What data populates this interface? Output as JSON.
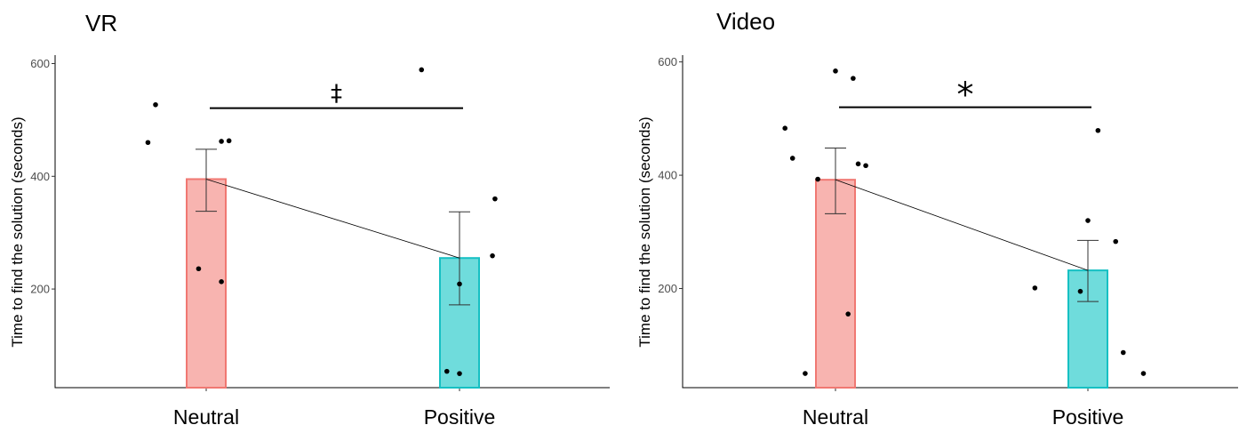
{
  "chart_data": [
    {
      "type": "bar",
      "title": "VR",
      "xlabel": "",
      "ylabel": "Time to find the solution (seconds)",
      "categories": [
        "Neutral",
        "Positive"
      ],
      "values": [
        395,
        255
      ],
      "error_low": [
        338,
        172
      ],
      "error_high": [
        448,
        337
      ],
      "ylim": [
        25,
        615
      ],
      "yticks": [
        200,
        400,
        600
      ],
      "colors": {
        "fill": [
          "#f8b4b0",
          "#6fdcdc"
        ],
        "stroke": [
          "#f07872",
          "#16c0c3"
        ]
      },
      "points": [
        {
          "category": "Neutral",
          "offset": -0.23,
          "y": 460
        },
        {
          "category": "Neutral",
          "offset": -0.2,
          "y": 527
        },
        {
          "category": "Neutral",
          "offset": 0.06,
          "y": 462
        },
        {
          "category": "Neutral",
          "offset": 0.09,
          "y": 463
        },
        {
          "category": "Neutral",
          "offset": -0.03,
          "y": 236
        },
        {
          "category": "Neutral",
          "offset": 0.06,
          "y": 213
        },
        {
          "category": "Positive",
          "offset": -0.15,
          "y": 589
        },
        {
          "category": "Positive",
          "offset": 0.14,
          "y": 360
        },
        {
          "category": "Positive",
          "offset": 0.13,
          "y": 259
        },
        {
          "category": "Positive",
          "offset": 0.0,
          "y": 209
        },
        {
          "category": "Positive",
          "offset": -0.05,
          "y": 54
        },
        {
          "category": "Positive",
          "offset": 0.0,
          "y": 50
        }
      ],
      "significance": {
        "symbol": "‡",
        "from": "Neutral",
        "to": "Positive",
        "y": 521
      }
    },
    {
      "type": "bar",
      "title": "Video",
      "xlabel": "",
      "ylabel": "Time to find the solution (seconds)",
      "categories": [
        "Neutral",
        "Positive"
      ],
      "values": [
        392,
        232
      ],
      "error_low": [
        332,
        177
      ],
      "error_high": [
        448,
        285
      ],
      "ylim": [
        25,
        612
      ],
      "yticks": [
        200,
        400,
        600
      ],
      "colors": {
        "fill": [
          "#f8b4b0",
          "#6fdcdc"
        ],
        "stroke": [
          "#f07872",
          "#16c0c3"
        ]
      },
      "points": [
        {
          "category": "Neutral",
          "offset": -0.2,
          "y": 483
        },
        {
          "category": "Neutral",
          "offset": -0.17,
          "y": 430
        },
        {
          "category": "Neutral",
          "offset": -0.07,
          "y": 393
        },
        {
          "category": "Neutral",
          "offset": 0.0,
          "y": 584
        },
        {
          "category": "Neutral",
          "offset": 0.07,
          "y": 571
        },
        {
          "category": "Neutral",
          "offset": 0.09,
          "y": 420
        },
        {
          "category": "Neutral",
          "offset": 0.12,
          "y": 417
        },
        {
          "category": "Neutral",
          "offset": 0.05,
          "y": 155
        },
        {
          "category": "Neutral",
          "offset": -0.12,
          "y": 50
        },
        {
          "category": "Positive",
          "offset": -0.21,
          "y": 201
        },
        {
          "category": "Positive",
          "offset": -0.03,
          "y": 195
        },
        {
          "category": "Positive",
          "offset": 0.0,
          "y": 320
        },
        {
          "category": "Positive",
          "offset": 0.04,
          "y": 479
        },
        {
          "category": "Positive",
          "offset": 0.11,
          "y": 283
        },
        {
          "category": "Positive",
          "offset": 0.14,
          "y": 87
        },
        {
          "category": "Positive",
          "offset": 0.22,
          "y": 50
        }
      ],
      "significance": {
        "symbol": "*",
        "from": "Neutral",
        "to": "Positive",
        "y": 520
      }
    }
  ]
}
